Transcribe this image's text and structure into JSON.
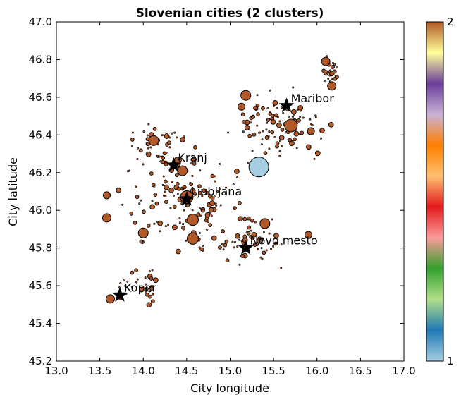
{
  "chart_data": {
    "type": "scatter",
    "title": "Slovenian cities (2 clusters)",
    "xlabel": "City longitude",
    "ylabel": "City latitude",
    "xlim": [
      13.0,
      17.0
    ],
    "ylim": [
      45.2,
      47.0
    ],
    "xticks": [
      "13.0",
      "13.5",
      "14.0",
      "14.5",
      "15.0",
      "15.5",
      "16.0",
      "16.5",
      "17.0"
    ],
    "yticks": [
      "45.2",
      "45.4",
      "45.6",
      "45.8",
      "46.0",
      "46.2",
      "46.4",
      "46.6",
      "46.8",
      "47.0"
    ],
    "grid": false,
    "colorbar": {
      "min_label": "1",
      "max_label": "2",
      "colormap": "Paired"
    },
    "cluster_colors": {
      "1": "#a6cee3",
      "2": "#b15928"
    },
    "large_cities": [
      {
        "name": "Ljubljana",
        "x": 15.33,
        "y": 46.23,
        "cluster": 1,
        "r": 14
      },
      {
        "x": 15.7,
        "y": 46.45,
        "cluster": 2,
        "r": 9
      },
      {
        "x": 14.5,
        "y": 46.07,
        "cluster": 2,
        "r": 9
      },
      {
        "x": 14.57,
        "y": 45.85,
        "cluster": 2,
        "r": 8
      },
      {
        "x": 14.57,
        "y": 45.95,
        "cluster": 2,
        "r": 8
      },
      {
        "x": 15.4,
        "y": 45.93,
        "cluster": 2,
        "r": 7
      },
      {
        "x": 15.18,
        "y": 46.61,
        "cluster": 2,
        "r": 7
      },
      {
        "x": 14.0,
        "y": 45.88,
        "cluster": 2,
        "r": 7
      },
      {
        "x": 14.12,
        "y": 46.37,
        "cluster": 2,
        "r": 7
      },
      {
        "x": 14.45,
        "y": 46.21,
        "cluster": 2,
        "r": 7
      },
      {
        "x": 16.1,
        "y": 46.79,
        "cluster": 2,
        "r": 6
      },
      {
        "x": 16.17,
        "y": 46.66,
        "cluster": 2,
        "r": 6
      },
      {
        "x": 13.58,
        "y": 45.96,
        "cluster": 2,
        "r": 6
      },
      {
        "x": 13.62,
        "y": 45.53,
        "cluster": 2,
        "r": 6
      },
      {
        "x": 14.38,
        "y": 46.25,
        "cluster": 2,
        "r": 6
      },
      {
        "x": 15.93,
        "y": 46.42,
        "cluster": 2,
        "r": 5
      },
      {
        "x": 13.58,
        "y": 46.08,
        "cluster": 2,
        "r": 5
      },
      {
        "x": 15.13,
        "y": 46.55,
        "cluster": 2,
        "r": 5
      },
      {
        "x": 15.9,
        "y": 45.87,
        "cluster": 2,
        "r": 5
      }
    ],
    "centroids": [
      {
        "name": "Maribor",
        "x": 15.65,
        "y": 46.555
      },
      {
        "name": "Kranj",
        "x": 14.35,
        "y": 46.24
      },
      {
        "name": "Ljubljana",
        "x": 14.5,
        "y": 46.06
      },
      {
        "name": "Novo mesto",
        "x": 15.18,
        "y": 45.8
      },
      {
        "name": "Koper",
        "x": 13.73,
        "y": 45.55
      }
    ]
  }
}
